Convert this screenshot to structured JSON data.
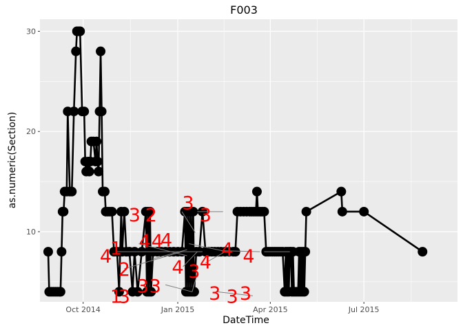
{
  "chart_data": {
    "type": "line",
    "title": "F003",
    "xlabel": "DateTime",
    "ylabel": "as.numeric(Section)",
    "x_axis_type": "date",
    "xlim": [
      "2014-08-20",
      "2015-09-30"
    ],
    "ylim": [
      3.0,
      31.2
    ],
    "x_ticks": [
      {
        "date": "2014-10-01",
        "label": "Oct 2014"
      },
      {
        "date": "2015-01-01",
        "label": "Jan 2015"
      },
      {
        "date": "2015-04-01",
        "label": "Apr 2015"
      },
      {
        "date": "2015-07-01",
        "label": "Jul 2015"
      }
    ],
    "y_ticks": [
      10,
      20,
      30
    ],
    "grid": true,
    "panel_background": "#ebebeb",
    "grid_color": "#ffffff",
    "series": [
      {
        "color": "#000000",
        "points": [
          [
            "2014-08-28",
            8
          ],
          [
            "2014-08-29",
            4
          ],
          [
            "2014-08-31",
            4
          ],
          [
            "2014-09-02",
            4
          ],
          [
            "2014-09-04",
            4
          ],
          [
            "2014-09-06",
            4
          ],
          [
            "2014-09-08",
            4
          ],
          [
            "2014-09-09",
            4
          ],
          [
            "2014-09-10",
            8
          ],
          [
            "2014-09-11",
            12
          ],
          [
            "2014-09-12",
            12
          ],
          [
            "2014-09-13",
            14
          ],
          [
            "2014-09-15",
            14
          ],
          [
            "2014-09-16",
            22
          ],
          [
            "2014-09-18",
            14
          ],
          [
            "2014-09-20",
            14
          ],
          [
            "2014-09-22",
            22
          ],
          [
            "2014-09-24",
            28
          ],
          [
            "2014-09-25",
            30
          ],
          [
            "2014-09-27",
            30
          ],
          [
            "2014-09-28",
            30
          ],
          [
            "2014-09-30",
            22
          ],
          [
            "2014-10-02",
            22
          ],
          [
            "2014-10-03",
            17
          ],
          [
            "2014-10-04",
            16
          ],
          [
            "2014-10-06",
            17
          ],
          [
            "2014-10-07",
            16
          ],
          [
            "2014-10-08",
            17
          ],
          [
            "2014-10-09",
            19
          ],
          [
            "2014-10-11",
            19
          ],
          [
            "2014-10-13",
            17
          ],
          [
            "2014-10-14",
            19
          ],
          [
            "2014-10-15",
            17
          ],
          [
            "2014-10-16",
            16
          ],
          [
            "2014-10-17",
            22
          ],
          [
            "2014-10-18",
            28
          ],
          [
            "2014-10-19",
            22
          ],
          [
            "2014-10-20",
            14
          ],
          [
            "2014-10-22",
            14
          ],
          [
            "2014-10-23",
            12
          ],
          [
            "2014-10-25",
            12
          ],
          [
            "2014-10-27",
            12
          ],
          [
            "2014-10-29",
            12
          ],
          [
            "2014-10-31",
            8
          ],
          [
            "2014-11-03",
            8
          ],
          [
            "2014-11-05",
            4
          ],
          [
            "2014-11-06",
            8
          ],
          [
            "2014-11-07",
            12
          ],
          [
            "2014-11-08",
            8
          ],
          [
            "2014-11-10",
            12
          ],
          [
            "2014-11-12",
            8
          ],
          [
            "2014-11-15",
            8
          ],
          [
            "2014-11-18",
            4
          ],
          [
            "2014-11-20",
            8
          ],
          [
            "2014-11-23",
            4
          ],
          [
            "2014-11-27",
            8
          ],
          [
            "2014-12-01",
            12
          ],
          [
            "2014-12-02",
            4
          ],
          [
            "2014-12-03",
            12
          ],
          [
            "2014-12-04",
            4
          ],
          [
            "2014-12-05",
            12
          ],
          [
            "2014-12-06",
            4
          ],
          [
            "2014-12-08",
            8
          ],
          [
            "2014-12-12",
            8
          ],
          [
            "2014-12-16",
            8
          ],
          [
            "2014-12-20",
            8
          ],
          [
            "2014-12-24",
            8
          ],
          [
            "2014-12-28",
            8
          ],
          [
            "2015-01-01",
            8
          ],
          [
            "2015-01-05",
            8
          ],
          [
            "2015-01-08",
            12
          ],
          [
            "2015-01-09",
            4
          ],
          [
            "2015-01-10",
            12
          ],
          [
            "2015-01-11",
            4
          ],
          [
            "2015-01-12",
            12
          ],
          [
            "2015-01-13",
            4
          ],
          [
            "2015-01-14",
            12
          ],
          [
            "2015-01-15",
            4
          ],
          [
            "2015-01-16",
            12
          ],
          [
            "2015-01-17",
            4
          ],
          [
            "2015-01-19",
            8
          ],
          [
            "2015-01-22",
            8
          ],
          [
            "2015-01-25",
            12
          ],
          [
            "2015-01-28",
            8
          ],
          [
            "2015-01-31",
            8
          ],
          [
            "2015-02-03",
            8
          ],
          [
            "2015-02-06",
            8
          ],
          [
            "2015-02-09",
            8
          ],
          [
            "2015-02-12",
            8
          ],
          [
            "2015-02-16",
            8
          ],
          [
            "2015-02-20",
            8
          ],
          [
            "2015-02-24",
            8
          ],
          [
            "2015-02-26",
            8
          ],
          [
            "2015-02-28",
            12
          ],
          [
            "2015-03-03",
            12
          ],
          [
            "2015-03-06",
            12
          ],
          [
            "2015-03-09",
            12
          ],
          [
            "2015-03-12",
            12
          ],
          [
            "2015-03-14",
            12
          ],
          [
            "2015-03-16",
            12
          ],
          [
            "2015-03-18",
            12
          ],
          [
            "2015-03-19",
            14
          ],
          [
            "2015-03-20",
            12
          ],
          [
            "2015-03-22",
            12
          ],
          [
            "2015-03-24",
            12
          ],
          [
            "2015-03-26",
            12
          ],
          [
            "2015-03-28",
            8
          ],
          [
            "2015-03-30",
            8
          ],
          [
            "2015-04-01",
            8
          ],
          [
            "2015-04-03",
            8
          ],
          [
            "2015-04-05",
            8
          ],
          [
            "2015-04-07",
            8
          ],
          [
            "2015-04-09",
            8
          ],
          [
            "2015-04-11",
            8
          ],
          [
            "2015-04-13",
            8
          ],
          [
            "2015-04-15",
            4
          ],
          [
            "2015-04-16",
            8
          ],
          [
            "2015-04-17",
            4
          ],
          [
            "2015-04-18",
            8
          ],
          [
            "2015-04-19",
            4
          ],
          [
            "2015-04-20",
            8
          ],
          [
            "2015-04-21",
            8
          ],
          [
            "2015-04-22",
            4
          ],
          [
            "2015-04-23",
            8
          ],
          [
            "2015-04-24",
            4
          ],
          [
            "2015-04-26",
            4
          ],
          [
            "2015-04-28",
            4
          ],
          [
            "2015-04-29",
            8
          ],
          [
            "2015-04-30",
            4
          ],
          [
            "2015-05-01",
            8
          ],
          [
            "2015-05-02",
            4
          ],
          [
            "2015-05-03",
            8
          ],
          [
            "2015-05-04",
            4
          ],
          [
            "2015-05-05",
            8
          ],
          [
            "2015-05-06",
            12
          ],
          [
            "2015-06-09",
            14
          ],
          [
            "2015-06-10",
            12
          ],
          [
            "2015-07-01",
            12
          ],
          [
            "2015-08-27",
            8
          ]
        ]
      }
    ],
    "annotation_segments": [
      {
        "x": "2014-11-02",
        "y": 8,
        "x2": "2015-01-25",
        "y2": 8
      },
      {
        "x": "2014-11-10",
        "y": 6.3,
        "x2": "2015-01-05",
        "y2": 8
      },
      {
        "x": "2014-11-24",
        "y": 8.8,
        "x2": "2015-01-10",
        "y2": 7.6
      },
      {
        "x": "2014-12-08",
        "y": 7.3,
        "x2": "2015-01-10",
        "y2": 8.2
      },
      {
        "x": "2014-12-20",
        "y": 4.7,
        "x2": "2015-01-15",
        "y2": 4
      },
      {
        "x": "2015-01-06",
        "y": 6.5,
        "x2": "2015-01-20",
        "y2": 8
      },
      {
        "x": "2015-01-12",
        "y": 8.8,
        "x2": "2015-02-18",
        "y2": 8
      },
      {
        "x": "2015-01-20",
        "y": 5.8,
        "x2": "2015-01-15",
        "y2": 4
      },
      {
        "x": "2015-01-28",
        "y": 6.9,
        "x2": "2015-02-16",
        "y2": 8
      },
      {
        "x": "2015-02-08",
        "y": 4,
        "x2": "2015-03-15",
        "y2": 3.6
      },
      {
        "x": "2015-02-12",
        "y": 8.1,
        "x2": "2015-03-22",
        "y2": 8
      },
      {
        "x": "2015-02-14",
        "y": 12,
        "x2": "2015-01-20",
        "y2": 12
      },
      {
        "x": "2015-01-18",
        "y": 9.9,
        "x2": "2015-01-05",
        "y2": 12
      },
      {
        "x": "2015-03-26",
        "y": 8,
        "x2": "2015-04-20",
        "y2": 8
      }
    ],
    "annotations": [
      {
        "text": "4",
        "x": "2014-10-23",
        "y": 7.6,
        "color": "#ff0000"
      },
      {
        "text": "1",
        "x": "2014-11-02",
        "y": 8.4,
        "color": "#ff0000"
      },
      {
        "text": "1",
        "x": "2014-11-02",
        "y": 3.6,
        "color": "#ff0000"
      },
      {
        "text": "3",
        "x": "2014-11-10",
        "y": 3.6,
        "color": "#ff0000"
      },
      {
        "text": "2",
        "x": "2014-11-10",
        "y": 6.3,
        "color": "#ff0000"
      },
      {
        "text": "3",
        "x": "2014-11-20",
        "y": 11.7,
        "color": "#ff0000"
      },
      {
        "text": "2",
        "x": "2014-12-06",
        "y": 11.7,
        "color": "#ff0000"
      },
      {
        "text": "4",
        "x": "2014-11-30",
        "y": 9.1,
        "color": "#ff0000"
      },
      {
        "text": "3",
        "x": "2014-11-28",
        "y": 4.6,
        "color": "#ff0000"
      },
      {
        "text": "3",
        "x": "2014-12-10",
        "y": 4.6,
        "color": "#ff0000"
      },
      {
        "text": "4",
        "x": "2014-12-12",
        "y": 9.1,
        "color": "#ff0000"
      },
      {
        "text": "4",
        "x": "2015-01-01",
        "y": 6.5,
        "color": "#ff0000"
      },
      {
        "text": "4",
        "x": "2014-12-21",
        "y": 9.2,
        "color": "#ff0000"
      },
      {
        "text": "3",
        "x": "2015-01-11",
        "y": 12.9,
        "color": "#ff0000"
      },
      {
        "text": "3",
        "x": "2015-01-17",
        "y": 6.1,
        "color": "#ff0000"
      },
      {
        "text": "3",
        "x": "2015-01-28",
        "y": 11.7,
        "color": "#ff0000"
      },
      {
        "text": "4",
        "x": "2015-01-28",
        "y": 7.0,
        "color": "#ff0000"
      },
      {
        "text": "3",
        "x": "2015-02-06",
        "y": 3.9,
        "color": "#ff0000"
      },
      {
        "text": "4",
        "x": "2015-02-18",
        "y": 8.3,
        "color": "#ff0000"
      },
      {
        "text": "3",
        "x": "2015-02-23",
        "y": 3.6,
        "color": "#ff0000"
      },
      {
        "text": "3",
        "x": "2015-03-08",
        "y": 3.9,
        "color": "#ff0000"
      },
      {
        "text": "4",
        "x": "2015-03-11",
        "y": 7.6,
        "color": "#ff0000"
      }
    ]
  }
}
